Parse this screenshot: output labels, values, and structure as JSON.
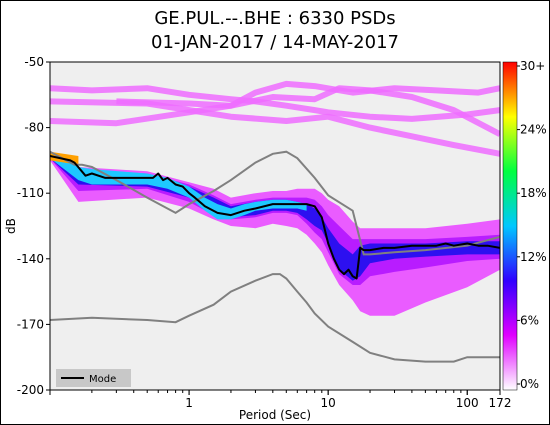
{
  "chart_data": {
    "type": "heatmap",
    "title": "GE.PUL.--.BHE : 6330 PSDs",
    "subtitle": "01-JAN-2017 / 14-MAY-2017",
    "xlabel": "Period (Sec)",
    "ylabel": "dB",
    "x_scale": "log",
    "xlim": [
      0.1,
      172
    ],
    "ylim": [
      -200,
      -50
    ],
    "x_ticks": [
      {
        "value": 1,
        "label": "1"
      },
      {
        "value": 10,
        "label": "10"
      },
      {
        "value": 100,
        "label": "100"
      },
      {
        "value": 172,
        "label": "172"
      }
    ],
    "y_ticks": [
      {
        "value": -50,
        "label": "-50"
      },
      {
        "value": -80,
        "label": "-80"
      },
      {
        "value": -110,
        "label": "-110"
      },
      {
        "value": -140,
        "label": "-140"
      },
      {
        "value": -170,
        "label": "-170"
      },
      {
        "value": -200,
        "label": "-200"
      }
    ],
    "colorbar": {
      "ticks": [
        "0%",
        "6%",
        "12%",
        "18%",
        "24%",
        "30+"
      ],
      "colors": [
        "#ffffff",
        "#e000ff",
        "#3000ff",
        "#00c8ff",
        "#00ff40",
        "#ffff00",
        "#ff0000"
      ]
    },
    "legend": {
      "label": "Mode",
      "position": "bottom-left"
    },
    "mode_series": {
      "name": "Mode",
      "x": [
        0.1,
        0.14,
        0.15,
        0.18,
        0.2,
        0.25,
        0.3,
        0.4,
        0.5,
        0.55,
        0.6,
        0.65,
        0.7,
        0.8,
        0.9,
        1.0,
        1.1,
        1.3,
        1.6,
        2.0,
        2.5,
        3.0,
        4.0,
        5.0,
        6.0,
        7.0,
        8.0,
        9.0,
        10.0,
        11.0,
        12.0,
        13.0,
        14.0,
        15.0,
        16.0,
        17.0,
        18.0,
        20.0,
        25.0,
        30.0,
        40.0,
        50.0,
        60.0,
        70.0,
        80.0,
        100.0,
        120.0,
        140.0,
        172.0
      ],
      "y": [
        -93,
        -95,
        -96,
        -102,
        -101,
        -103,
        -103,
        -103,
        -103,
        -103,
        -101,
        -104,
        -103,
        -106,
        -107,
        -110,
        -112,
        -116,
        -119,
        -120,
        -118,
        -117,
        -115,
        -115,
        -115,
        -115,
        -116,
        -121,
        -133,
        -140,
        -145,
        -147,
        -145,
        -148,
        -149,
        -135,
        -136,
        -136,
        -135,
        -135,
        -134,
        -134,
        -134,
        -133,
        -134,
        -133,
        -134,
        -134,
        -135
      ]
    },
    "noise_model_high": {
      "x": [
        0.1,
        0.15,
        0.17,
        0.2,
        0.3,
        0.5,
        0.8,
        1.0,
        1.5,
        2.0,
        3.0,
        4.0,
        5.0,
        6.0,
        8.0,
        10.0,
        15.0,
        18.0,
        20.0,
        30.0,
        50.0,
        100.0,
        172.0
      ],
      "y": [
        -91,
        -97,
        -97,
        -98,
        -104,
        -112,
        -119,
        -115,
        -109,
        -104,
        -96,
        -92,
        -91,
        -94,
        -103,
        -111,
        -118,
        -138,
        -138,
        -137,
        -136,
        -134,
        -130
      ]
    },
    "noise_model_low": {
      "x": [
        0.1,
        0.2,
        0.5,
        0.8,
        1.0,
        1.5,
        2.0,
        3.0,
        4.0,
        4.5,
        5.0,
        6.0,
        7.0,
        8.0,
        10.0,
        15.0,
        20.0,
        30.0,
        50.0,
        80.0,
        100.0,
        172.0
      ],
      "y": [
        -168,
        -167,
        -168,
        -169,
        -166,
        -161,
        -155,
        -150,
        -147,
        -147,
        -149,
        -155,
        -160,
        -165,
        -171,
        -178,
        -183,
        -186,
        -187,
        -187,
        -185,
        -185
      ]
    },
    "spread_bands": [
      {
        "x": [
          0.1,
          0.16,
          0.5,
          1,
          1.5,
          2,
          3,
          4,
          5,
          6,
          7,
          8,
          9,
          10,
          12,
          15,
          17,
          20,
          30,
          50,
          100,
          172
        ],
        "upper": [
          -92,
          -98,
          -100,
          -105,
          -108,
          -112,
          -110,
          -109,
          -109,
          -108,
          -108,
          -108,
          -110,
          -113,
          -116,
          -123,
          -126,
          -126,
          -126,
          -126,
          -124,
          -122
        ],
        "lower": [
          -95,
          -114,
          -112,
          -117,
          -122,
          -125,
          -126,
          -124,
          -125,
          -126,
          -129,
          -133,
          -137,
          -143,
          -152,
          -159,
          -164,
          -166,
          -166,
          -160,
          -153,
          -145
        ],
        "color": "#ea5cff"
      },
      {
        "x": [
          0.1,
          0.16,
          0.5,
          1,
          1.5,
          2,
          3,
          4,
          5,
          6,
          7,
          8,
          9,
          10,
          12,
          15,
          17,
          20,
          30,
          50,
          100,
          172
        ],
        "upper": [
          -92,
          -99,
          -101,
          -106,
          -111,
          -115,
          -113,
          -112,
          -112,
          -112,
          -112,
          -113,
          -116,
          -120,
          -125,
          -131,
          -131,
          -131,
          -131,
          -131,
          -130,
          -129
        ],
        "lower": [
          -94,
          -109,
          -108,
          -114,
          -120,
          -122,
          -121,
          -119,
          -119,
          -120,
          -124,
          -128,
          -131,
          -137,
          -147,
          -152,
          -152,
          -148,
          -146,
          -144,
          -141,
          -140
        ],
        "color": "#b81cff"
      },
      {
        "x": [
          0.1,
          0.16,
          0.5,
          1,
          1.5,
          2,
          3,
          4,
          5,
          6,
          7,
          8,
          9,
          10,
          12,
          15,
          17,
          20,
          30,
          50,
          100,
          172
        ],
        "upper": [
          -92,
          -99,
          -102,
          -107,
          -112,
          -116,
          -114,
          -113,
          -113,
          -114,
          -115,
          -117,
          -121,
          -126,
          -133,
          -138,
          -134,
          -133,
          -133,
          -133,
          -132,
          -132
        ],
        "lower": [
          -94,
          -106,
          -107,
          -112,
          -118,
          -121,
          -120,
          -118,
          -118,
          -119,
          -122,
          -125,
          -127,
          -133,
          -145,
          -150,
          -148,
          -142,
          -140,
          -139,
          -138,
          -138
        ],
        "color": "#2d10f0"
      },
      {
        "x": [
          0.1,
          0.16,
          0.2,
          0.5,
          0.7,
          1,
          1.3,
          1.6,
          2,
          2.5,
          3,
          4,
          5,
          6,
          7
        ],
        "upper": [
          -91,
          -98,
          -99,
          -101,
          -103,
          -107,
          -112,
          -115,
          -117,
          -115,
          -114,
          -113,
          -113,
          -114,
          -115
        ],
        "lower": [
          -94,
          -104,
          -106,
          -106,
          -108,
          -112,
          -118,
          -122,
          -122,
          -120,
          -118,
          -117,
          -117,
          -117,
          -118
        ],
        "color": "#1ec8ff"
      }
    ],
    "hot_spot": {
      "x": [
        0.1,
        0.16
      ],
      "upper": [
        -91,
        -93
      ],
      "lower": [
        -95,
        -97
      ],
      "color": "#ffa000"
    },
    "upper_tracks": [
      {
        "x": [
          0.1,
          0.2,
          0.5,
          1,
          2,
          3,
          5,
          8,
          10,
          20,
          40,
          100,
          172
        ],
        "y": [
          -62,
          -63,
          -62,
          -65,
          -67,
          -68,
          -70,
          -72,
          -73,
          -75,
          -76,
          -74,
          -72
        ]
      },
      {
        "x": [
          0.1,
          0.3,
          1,
          2,
          4,
          8,
          12,
          20,
          40,
          80,
          172
        ],
        "y": [
          -77,
          -78,
          -73,
          -70,
          -66,
          -67,
          -62,
          -63,
          -66,
          -72,
          -83
        ]
      },
      {
        "x": [
          0.3,
          1,
          2,
          3,
          5,
          8,
          15,
          30,
          60,
          120,
          172
        ],
        "y": [
          -68,
          -69,
          -70,
          -64,
          -60,
          -61,
          -64,
          -62,
          -63,
          -64,
          -62
        ]
      },
      {
        "x": [
          0.1,
          0.5,
          1,
          2,
          5,
          10,
          20,
          40,
          80,
          172
        ],
        "y": [
          -68,
          -69,
          -72,
          -75,
          -77,
          -75,
          -80,
          -84,
          -88,
          -92
        ]
      }
    ]
  }
}
